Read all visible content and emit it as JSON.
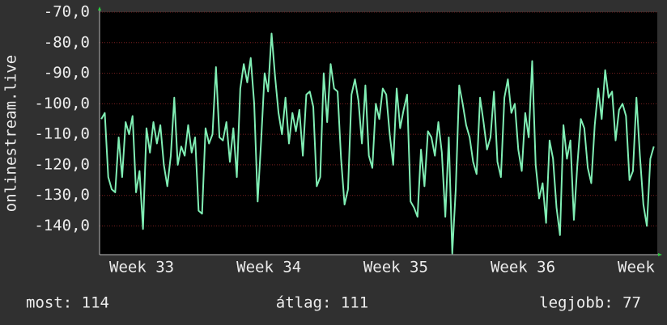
{
  "chart_data": {
    "type": "line",
    "ylabel": "onlinestream.live",
    "ylim": [
      -149.4,
      -70
    ],
    "yticks": [
      {
        "value": -70,
        "label": "-70,0"
      },
      {
        "value": -80,
        "label": "-80,0"
      },
      {
        "value": -90,
        "label": "-90,0"
      },
      {
        "value": -100,
        "label": "-100,0"
      },
      {
        "value": -110,
        "label": "-110,0"
      },
      {
        "value": -120,
        "label": "-120,0"
      },
      {
        "value": -130,
        "label": "-130,0"
      },
      {
        "value": -140,
        "label": "-140,0"
      }
    ],
    "xlim": [
      -0.5,
      160
    ],
    "xticks": [
      {
        "value": 2.3,
        "label": "Week 33"
      },
      {
        "value": 38.9,
        "label": "Week 34"
      },
      {
        "value": 75.4,
        "label": "Week 35"
      },
      {
        "value": 112.0,
        "label": "Week 36"
      },
      {
        "value": 148.6,
        "label": "Week"
      }
    ],
    "grid": true,
    "x": [
      0,
      1,
      2,
      3,
      4,
      5,
      6,
      7,
      8,
      9,
      10,
      11,
      12,
      13,
      14,
      15,
      16,
      17,
      18,
      19,
      20,
      21,
      22,
      23,
      24,
      25,
      26,
      27,
      28,
      29,
      30,
      31,
      32,
      33,
      34,
      35,
      36,
      37,
      38,
      39,
      40,
      41,
      42,
      43,
      44,
      45,
      46,
      47,
      48,
      49,
      50,
      51,
      52,
      53,
      54,
      55,
      56,
      57,
      58,
      59,
      60,
      61,
      62,
      63,
      64,
      65,
      66,
      67,
      68,
      69,
      70,
      71,
      72,
      73,
      74,
      75,
      76,
      77,
      78,
      79,
      80,
      81,
      82,
      83,
      84,
      85,
      86,
      87,
      88,
      89,
      90,
      91,
      92,
      93,
      94,
      95,
      96,
      97,
      98,
      99,
      100,
      101,
      102,
      103,
      104,
      105,
      106,
      107,
      108,
      109,
      110,
      111,
      112,
      113,
      114,
      115,
      116,
      117,
      118,
      119,
      120,
      121,
      122,
      123,
      124,
      125,
      126,
      127,
      128,
      129,
      130,
      131,
      132,
      133,
      134,
      135,
      136,
      137,
      138,
      139,
      140,
      141,
      142,
      143,
      144,
      145,
      146,
      147,
      148,
      149,
      150,
      151,
      152,
      153,
      154,
      155,
      156,
      157,
      158,
      159
    ],
    "series": [
      {
        "color": "#80eeb4",
        "values": [
          -105,
          -103,
          -124,
          -128,
          -129,
          -111,
          -124,
          -106,
          -110,
          -104,
          -129,
          -122,
          -141,
          -108,
          -116,
          -106,
          -113,
          -107,
          -120,
          -127,
          -117,
          -98,
          -120,
          -114,
          -117,
          -107,
          -116,
          -111,
          -135,
          -136,
          -108,
          -113,
          -110,
          -88,
          -111,
          -112,
          -106,
          -119,
          -108,
          -124,
          -95,
          -87,
          -93,
          -85,
          -100,
          -132,
          -112,
          -90,
          -96,
          -77,
          -91,
          -103,
          -110,
          -98,
          -113,
          -103,
          -109,
          -102,
          -117,
          -97,
          -96,
          -101,
          -127,
          -124,
          -90,
          -106,
          -87,
          -95,
          -96,
          -118,
          -133,
          -128,
          -97,
          -92,
          -99,
          -113,
          -94,
          -117,
          -121,
          -100,
          -105,
          -95,
          -97,
          -110,
          -120,
          -95,
          -108,
          -102,
          -97,
          -132,
          -134,
          -137,
          -115,
          -127,
          -109,
          -111,
          -117,
          -106,
          -116,
          -137,
          -111,
          -149,
          -128,
          -94,
          -100,
          -107,
          -111,
          -119,
          -123,
          -98,
          -106,
          -115,
          -111,
          -96,
          -119,
          -124,
          -98,
          -92,
          -103,
          -100,
          -115,
          -122,
          -103,
          -111,
          -86,
          -120,
          -131,
          -126,
          -139,
          -112,
          -118,
          -134,
          -143,
          -107,
          -118,
          -112,
          -138,
          -120,
          -105,
          -108,
          -121,
          -126,
          -107,
          -95,
          -105,
          -89,
          -98,
          -96,
          -112,
          -102,
          -100,
          -104,
          -125,
          -122,
          -98,
          -117,
          -133,
          -140,
          -118,
          -114
        ]
      }
    ]
  },
  "footer": {
    "current": "most: 114",
    "average": "átlag: 111",
    "best": "legjobb: 77"
  }
}
